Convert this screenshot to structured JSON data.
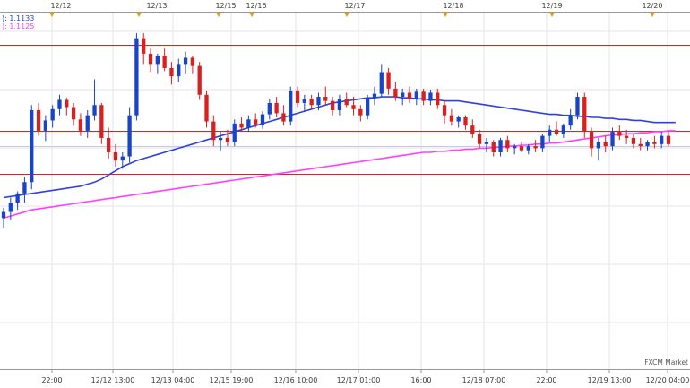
{
  "chart_data": {
    "type": "candlestick",
    "watermark": "FXCM Market",
    "legend": [
      {
        "label_fragment": "): 1.1133",
        "color": "#3040e0"
      },
      {
        "label_fragment": "): 1.1125",
        "color": "#ff40ff"
      }
    ],
    "date_markers": [
      "12/12",
      "12/13",
      "12/15",
      "12/16",
      "12/17",
      "12/18",
      "12/19",
      "12/20"
    ],
    "x_tick_labels": [
      "22:00",
      "12/12 13:00",
      "12/13 04:00",
      "12/15 19:00",
      "12/16 10:00",
      "12/17 01:00",
      "16:00",
      "12/18 07:00",
      "22:00",
      "12/19 13:00",
      "12/20 04:00"
    ],
    "y_range": [
      1.0893,
      1.124
    ],
    "horizontal_levels": [
      {
        "name": "resistance-top",
        "value": 1.1209,
        "color": "#e02020"
      },
      {
        "name": "resistance-mid",
        "value": 1.1125,
        "color": "#e02020"
      },
      {
        "name": "support",
        "value": 1.1083,
        "color": "#e02020"
      },
      {
        "name": "current-price",
        "value": 1.111,
        "color": "#c8c8e6"
      }
    ],
    "candles_ohlc": [
      [
        1.104,
        1.105,
        1.103,
        1.1046
      ],
      [
        1.1046,
        1.106,
        1.1038,
        1.1055
      ],
      [
        1.1055,
        1.1066,
        1.1048,
        1.1064
      ],
      [
        1.1064,
        1.108,
        1.1055,
        1.1075
      ],
      [
        1.1075,
        1.115,
        1.1068,
        1.1145
      ],
      [
        1.1145,
        1.1152,
        1.112,
        1.1125
      ],
      [
        1.1125,
        1.114,
        1.1115,
        1.1135
      ],
      [
        1.1135,
        1.115,
        1.1128,
        1.1146
      ],
      [
        1.1146,
        1.116,
        1.114,
        1.1155
      ],
      [
        1.1155,
        1.1157,
        1.114,
        1.1148
      ],
      [
        1.1148,
        1.1152,
        1.113,
        1.1136
      ],
      [
        1.1136,
        1.1142,
        1.112,
        1.1125
      ],
      [
        1.1125,
        1.1145,
        1.1118,
        1.114
      ],
      [
        1.114,
        1.1175,
        1.1135,
        1.115
      ],
      [
        1.115,
        1.1152,
        1.1112,
        1.1118
      ],
      [
        1.1118,
        1.1128,
        1.1098,
        1.1104
      ],
      [
        1.1104,
        1.1112,
        1.109,
        1.1096
      ],
      [
        1.1096,
        1.1104,
        1.1088,
        1.11
      ],
      [
        1.11,
        1.1148,
        1.1094,
        1.114
      ],
      [
        1.114,
        1.122,
        1.1135,
        1.1215
      ],
      [
        1.1215,
        1.122,
        1.119,
        1.12
      ],
      [
        1.12,
        1.1205,
        1.1182,
        1.119
      ],
      [
        1.119,
        1.12,
        1.118,
        1.1198
      ],
      [
        1.1198,
        1.1205,
        1.1183,
        1.1186
      ],
      [
        1.1186,
        1.1192,
        1.117,
        1.1178
      ],
      [
        1.1178,
        1.1195,
        1.1172,
        1.119
      ],
      [
        1.119,
        1.1202,
        1.118,
        1.1196
      ],
      [
        1.1196,
        1.1198,
        1.118,
        1.1188
      ],
      [
        1.1188,
        1.1192,
        1.1155,
        1.116
      ],
      [
        1.116,
        1.1164,
        1.1128,
        1.1134
      ],
      [
        1.1134,
        1.114,
        1.111,
        1.1116
      ],
      [
        1.1116,
        1.1124,
        1.1106,
        1.1118
      ],
      [
        1.1118,
        1.1126,
        1.111,
        1.1114
      ],
      [
        1.1114,
        1.1136,
        1.111,
        1.1132
      ],
      [
        1.1132,
        1.1138,
        1.1124,
        1.1128
      ],
      [
        1.1128,
        1.114,
        1.1124,
        1.1136
      ],
      [
        1.1136,
        1.1142,
        1.1128,
        1.1131
      ],
      [
        1.1131,
        1.1144,
        1.1127,
        1.1141
      ],
      [
        1.1141,
        1.1156,
        1.1136,
        1.1152
      ],
      [
        1.1152,
        1.1158,
        1.1138,
        1.1142
      ],
      [
        1.1142,
        1.115,
        1.113,
        1.1134
      ],
      [
        1.1134,
        1.1168,
        1.113,
        1.1164
      ],
      [
        1.1164,
        1.1168,
        1.1148,
        1.1152
      ],
      [
        1.1152,
        1.116,
        1.1144,
        1.1156
      ],
      [
        1.1156,
        1.116,
        1.1146,
        1.115
      ],
      [
        1.115,
        1.1162,
        1.1145,
        1.1158
      ],
      [
        1.1158,
        1.1168,
        1.115,
        1.1154
      ],
      [
        1.1154,
        1.1158,
        1.114,
        1.1145
      ],
      [
        1.1145,
        1.116,
        1.114,
        1.1156
      ],
      [
        1.1156,
        1.1162,
        1.1148,
        1.115
      ],
      [
        1.115,
        1.1158,
        1.114,
        1.1146
      ],
      [
        1.1146,
        1.115,
        1.1134,
        1.114
      ],
      [
        1.114,
        1.116,
        1.1136,
        1.1157
      ],
      [
        1.1157,
        1.1168,
        1.115,
        1.1161
      ],
      [
        1.1161,
        1.119,
        1.1158,
        1.1182
      ],
      [
        1.1182,
        1.1186,
        1.116,
        1.1166
      ],
      [
        1.1166,
        1.1172,
        1.1154,
        1.1158
      ],
      [
        1.1158,
        1.1166,
        1.115,
        1.1162
      ],
      [
        1.1162,
        1.1168,
        1.1152,
        1.1156
      ],
      [
        1.1156,
        1.1166,
        1.115,
        1.1163
      ],
      [
        1.1163,
        1.1166,
        1.115,
        1.1154
      ],
      [
        1.1154,
        1.1165,
        1.115,
        1.1162
      ],
      [
        1.1162,
        1.1166,
        1.1146,
        1.115
      ],
      [
        1.115,
        1.1154,
        1.1132,
        1.114
      ],
      [
        1.114,
        1.1146,
        1.113,
        1.1134
      ],
      [
        1.1134,
        1.114,
        1.1128,
        1.1138
      ],
      [
        1.1138,
        1.114,
        1.1126,
        1.113
      ],
      [
        1.113,
        1.1136,
        1.1118,
        1.1122
      ],
      [
        1.1122,
        1.1126,
        1.1108,
        1.1112
      ],
      [
        1.1112,
        1.1118,
        1.1104,
        1.1114
      ],
      [
        1.1114,
        1.1116,
        1.11,
        1.1104
      ],
      [
        1.1104,
        1.1118,
        1.11,
        1.1116
      ],
      [
        1.1116,
        1.112,
        1.1104,
        1.1108
      ],
      [
        1.1108,
        1.1112,
        1.1102,
        1.111
      ],
      [
        1.111,
        1.1114,
        1.1104,
        1.1106
      ],
      [
        1.1106,
        1.1112,
        1.1102,
        1.111
      ],
      [
        1.111,
        1.1116,
        1.1104,
        1.1108
      ],
      [
        1.1108,
        1.1122,
        1.1104,
        1.112
      ],
      [
        1.112,
        1.113,
        1.1114,
        1.1126
      ],
      [
        1.1126,
        1.1134,
        1.112,
        1.1122
      ],
      [
        1.1122,
        1.1132,
        1.1118,
        1.113
      ],
      [
        1.113,
        1.1146,
        1.1126,
        1.114
      ],
      [
        1.114,
        1.1162,
        1.1136,
        1.1158
      ],
      [
        1.1158,
        1.1162,
        1.1118,
        1.1124
      ],
      [
        1.1124,
        1.1128,
        1.11,
        1.1108
      ],
      [
        1.1108,
        1.1118,
        1.1096,
        1.1114
      ],
      [
        1.1114,
        1.112,
        1.1104,
        1.111
      ],
      [
        1.111,
        1.1128,
        1.1106,
        1.1124
      ],
      [
        1.1124,
        1.113,
        1.1116,
        1.112
      ],
      [
        1.112,
        1.1126,
        1.1112,
        1.1118
      ],
      [
        1.1118,
        1.1122,
        1.1108,
        1.1112
      ],
      [
        1.1112,
        1.1118,
        1.1106,
        1.111
      ],
      [
        1.111,
        1.1116,
        1.1106,
        1.1114
      ],
      [
        1.1114,
        1.112,
        1.1108,
        1.1112
      ],
      [
        1.1112,
        1.1124,
        1.1108,
        1.112
      ],
      [
        1.112,
        1.1124,
        1.111,
        1.1112
      ]
    ],
    "series": [
      {
        "name": "MA blue",
        "color": "#3040e0",
        "values": [
          1.106,
          1.1061,
          1.1062,
          1.1063,
          1.1064,
          1.1065,
          1.1066,
          1.1067,
          1.1068,
          1.1069,
          1.107,
          1.1071,
          1.1073,
          1.1075,
          1.1078,
          1.1082,
          1.1086,
          1.109,
          1.1093,
          1.1096,
          1.1098,
          1.11,
          1.1102,
          1.1104,
          1.1106,
          1.1108,
          1.111,
          1.1112,
          1.1114,
          1.1116,
          1.1118,
          1.112,
          1.1122,
          1.1124,
          1.1126,
          1.1128,
          1.113,
          1.1132,
          1.1134,
          1.1136,
          1.1138,
          1.114,
          1.1142,
          1.1144,
          1.1146,
          1.1148,
          1.115,
          1.1152,
          1.1153,
          1.1154,
          1.1155,
          1.1156,
          1.1157,
          1.1157,
          1.1158,
          1.1158,
          1.1158,
          1.1157,
          1.1157,
          1.1156,
          1.1156,
          1.1155,
          1.1155,
          1.1154,
          1.1154,
          1.1154,
          1.1153,
          1.1152,
          1.1151,
          1.115,
          1.1149,
          1.1148,
          1.1147,
          1.1146,
          1.1145,
          1.1144,
          1.1143,
          1.1142,
          1.1141,
          1.1141,
          1.114,
          1.114,
          1.1139,
          1.1139,
          1.1138,
          1.1138,
          1.1137,
          1.1137,
          1.1136,
          1.1136,
          1.1135,
          1.1135,
          1.1134,
          1.1133,
          1.1133,
          1.1133,
          1.1133
        ]
      },
      {
        "name": "MA magenta",
        "color": "#ff40ff",
        "values": [
          1.104,
          1.1042,
          1.1044,
          1.1046,
          1.1048,
          1.1049,
          1.105,
          1.1051,
          1.1052,
          1.1053,
          1.1054,
          1.1055,
          1.1056,
          1.1057,
          1.1058,
          1.1059,
          1.106,
          1.1061,
          1.1062,
          1.1063,
          1.1064,
          1.1065,
          1.1066,
          1.1067,
          1.1068,
          1.1069,
          1.107,
          1.1071,
          1.1072,
          1.1073,
          1.1074,
          1.1075,
          1.1076,
          1.1077,
          1.1078,
          1.1079,
          1.108,
          1.1081,
          1.1082,
          1.1083,
          1.1084,
          1.1085,
          1.1086,
          1.1087,
          1.1088,
          1.1089,
          1.109,
          1.1091,
          1.1092,
          1.1093,
          1.1094,
          1.1095,
          1.1096,
          1.1097,
          1.1098,
          1.1099,
          1.11,
          1.1101,
          1.1102,
          1.1103,
          1.1104,
          1.1104,
          1.1105,
          1.1105,
          1.1106,
          1.1106,
          1.1107,
          1.1107,
          1.1108,
          1.1108,
          1.1109,
          1.1109,
          1.111,
          1.111,
          1.1111,
          1.1111,
          1.1112,
          1.1112,
          1.1113,
          1.1113,
          1.1114,
          1.1115,
          1.1116,
          1.1117,
          1.1118,
          1.1119,
          1.112,
          1.1121,
          1.1121,
          1.1122,
          1.1122,
          1.1123,
          1.1123,
          1.1124,
          1.1124,
          1.1125,
          1.1125
        ]
      }
    ],
    "grid": true,
    "colors": {
      "up": "#1a44c8",
      "down": "#d82020",
      "grid": "#e6e6ee",
      "axis": "#999999"
    }
  }
}
